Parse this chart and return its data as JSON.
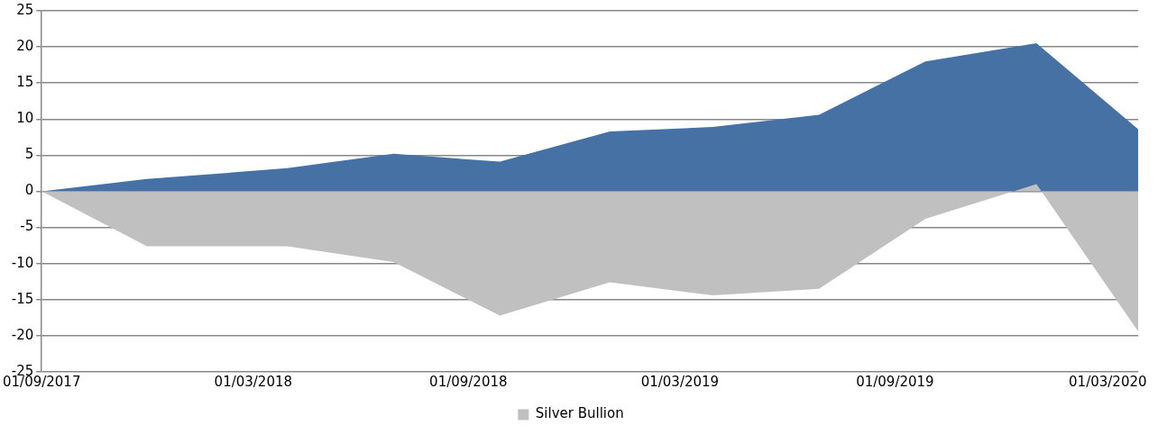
{
  "chart_data": {
    "type": "area",
    "x": [
      "2017-09-01",
      "2017-11-30",
      "2018-03-30",
      "2018-06-29",
      "2018-09-28",
      "2018-12-31",
      "2019-03-29",
      "2019-06-28",
      "2019-09-27",
      "2019-12-31",
      "2020-03-27"
    ],
    "series": [
      {
        "color": "#4571a5",
        "values": [
          0,
          1.7,
          3.2,
          5.2,
          4.1,
          8.3,
          8.9,
          10.6,
          18.0,
          20.5,
          8.6
        ]
      },
      {
        "name": "Silver Bullion",
        "color": "#c0c0c0",
        "values": [
          0,
          -7.6,
          -7.6,
          -9.8,
          -17.2,
          -12.6,
          -14.4,
          -13.5,
          -3.8,
          1.0,
          -19.4
        ]
      }
    ],
    "xlim": [
      "2017-09-01",
      "2020-03-27"
    ],
    "xticks": [
      {
        "value": "2017-09-01",
        "label": "01/09/2017"
      },
      {
        "value": "2018-03-01",
        "label": "01/03/2018"
      },
      {
        "value": "2018-09-01",
        "label": "01/09/2018"
      },
      {
        "value": "2019-03-01",
        "label": "01/03/2019"
      },
      {
        "value": "2019-09-01",
        "label": "01/09/2019"
      },
      {
        "value": "2020-03-01",
        "label": "01/03/2020"
      }
    ],
    "ylim": [
      -25,
      25
    ],
    "yticks": [
      -25,
      -20,
      -15,
      -10,
      -5,
      0,
      5,
      10,
      15,
      20,
      25
    ],
    "grid": "y",
    "legend": "bottom"
  }
}
